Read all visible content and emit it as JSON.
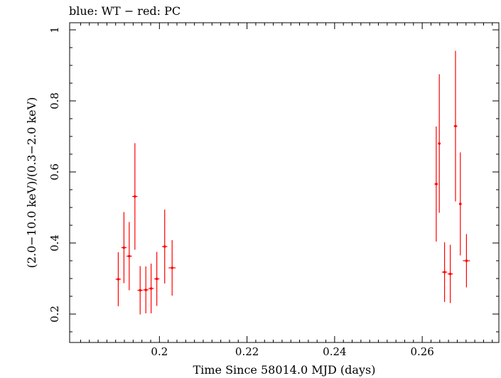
{
  "header": {
    "title": "blue: WT − red: PC"
  },
  "chart_data": {
    "type": "scatter",
    "title": "blue: WT − red: PC",
    "xlabel": "Time Since 58014.0 MJD (days)",
    "ylabel": "(2.0−10.0 keV)/(0.3−2.0 keV)",
    "xlim": [
      0.1795,
      0.2775
    ],
    "ylim": [
      0.12,
      1.02
    ],
    "x_ticks": [
      0.2,
      0.22,
      0.24,
      0.26
    ],
    "x_tick_labels": [
      "0.2",
      "0.22",
      "0.24",
      "0.26"
    ],
    "y_ticks": [
      0.2,
      0.4,
      0.6,
      0.8,
      1.0
    ],
    "y_tick_labels": [
      "0.2",
      "0.4",
      "0.6",
      "0.8",
      "1"
    ],
    "grid": false,
    "series": [
      {
        "color": "#ff0000",
        "points": [
          {
            "x": 0.1906,
            "xerr": 0.0006,
            "y": 0.298,
            "yerr": 0.076
          },
          {
            "x": 0.1919,
            "xerr": 0.0006,
            "y": 0.387,
            "yerr": 0.1
          },
          {
            "x": 0.1931,
            "xerr": 0.0006,
            "y": 0.363,
            "yerr": 0.096
          },
          {
            "x": 0.1944,
            "xerr": 0.0006,
            "y": 0.531,
            "yerr": 0.15
          },
          {
            "x": 0.1956,
            "xerr": 0.0006,
            "y": 0.267,
            "yerr": 0.068
          },
          {
            "x": 0.1969,
            "xerr": 0.0006,
            "y": 0.268,
            "yerr": 0.066
          },
          {
            "x": 0.1981,
            "xerr": 0.0006,
            "y": 0.272,
            "yerr": 0.07
          },
          {
            "x": 0.1994,
            "xerr": 0.0006,
            "y": 0.299,
            "yerr": 0.076
          },
          {
            "x": 0.2012,
            "xerr": 0.0006,
            "y": 0.39,
            "yerr": 0.104
          },
          {
            "x": 0.2029,
            "xerr": 0.0008,
            "y": 0.33,
            "yerr": 0.078
          },
          {
            "x": 0.2632,
            "xerr": 0.0004,
            "y": 0.566,
            "yerr": 0.162
          },
          {
            "x": 0.2639,
            "xerr": 0.0003,
            "y": 0.68,
            "yerr": 0.195
          },
          {
            "x": 0.2651,
            "xerr": 0.0006,
            "y": 0.318,
            "yerr": 0.084
          },
          {
            "x": 0.2664,
            "xerr": 0.0006,
            "y": 0.313,
            "yerr": 0.082
          },
          {
            "x": 0.2676,
            "xerr": 0.0004,
            "y": 0.729,
            "yerr": 0.212
          },
          {
            "x": 0.2687,
            "xerr": 0.0003,
            "y": 0.51,
            "yerr": 0.145
          },
          {
            "x": 0.2701,
            "xerr": 0.0008,
            "y": 0.35,
            "yerr": 0.075
          }
        ]
      }
    ]
  }
}
